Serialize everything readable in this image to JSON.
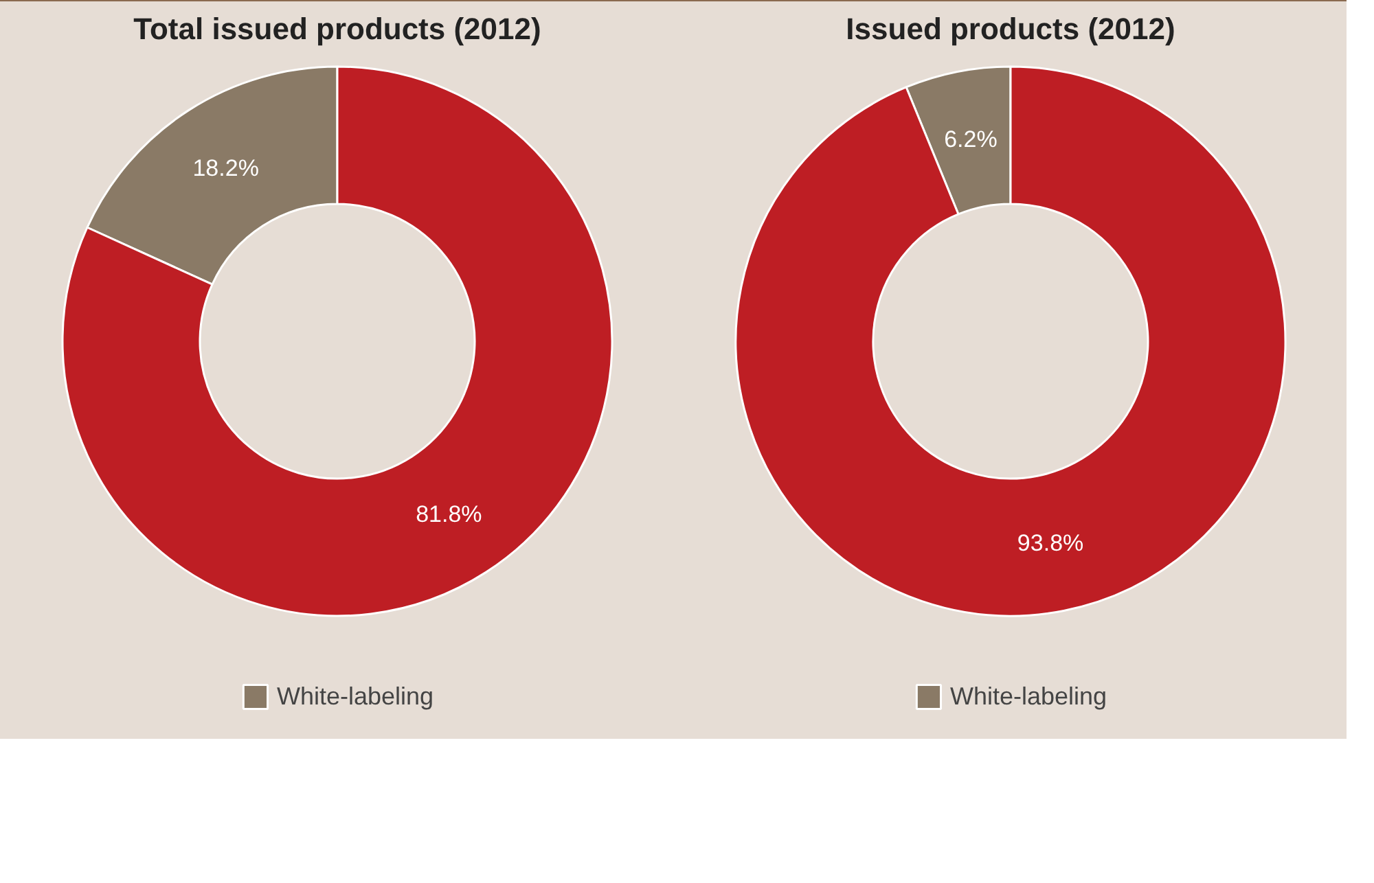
{
  "chart_data": [
    {
      "type": "donut",
      "title": "Total issued products (2012)",
      "categories": [
        "White-labeling",
        null
      ],
      "values": [
        18.2,
        81.8
      ],
      "colors": [
        "#8a7a66",
        "#be1e24"
      ],
      "value_labels": [
        "18.2%",
        "81.8%"
      ],
      "legend": "bottom"
    },
    {
      "type": "donut",
      "title": "Issued products (2012)",
      "categories": [
        "White-labeling",
        null
      ],
      "values": [
        6.2,
        93.8
      ],
      "colors": [
        "#8a7a66",
        "#be1e24"
      ],
      "value_labels": [
        "6.2%",
        "93.8%"
      ],
      "legend": "bottom"
    }
  ]
}
